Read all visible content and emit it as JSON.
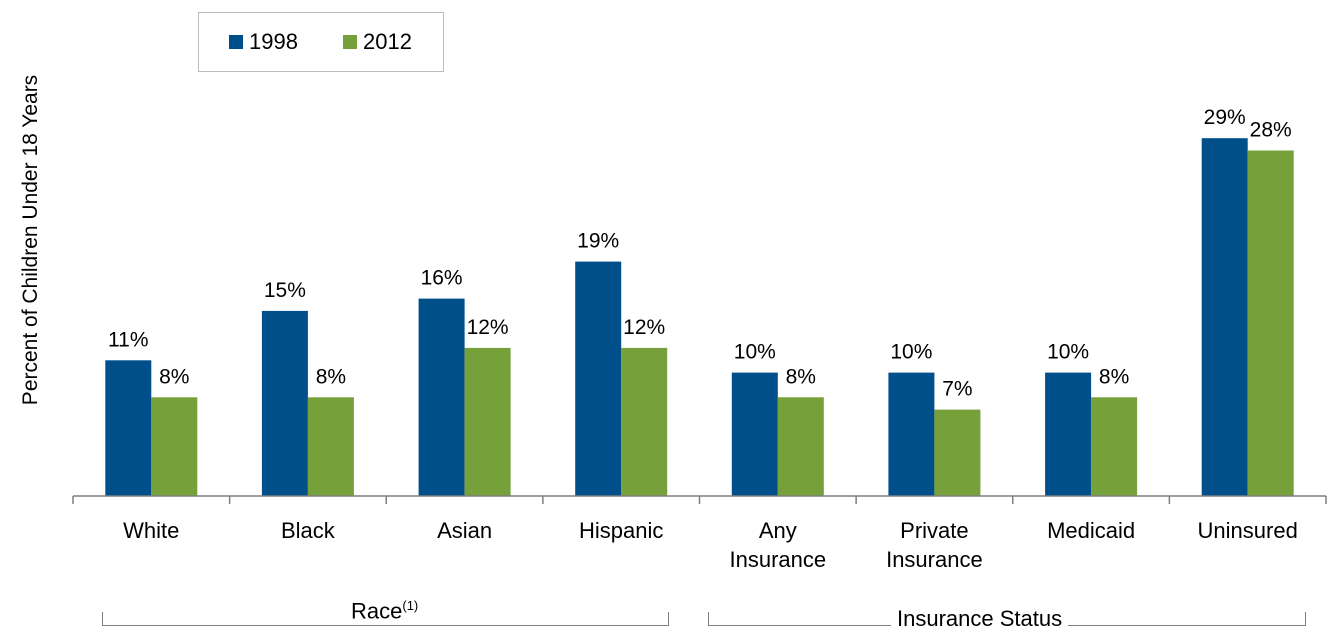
{
  "legend": [
    {
      "name": "1998",
      "color": "#004f8b"
    },
    {
      "name": "2012",
      "color": "#76a03a"
    }
  ],
  "chart_data": {
    "type": "bar",
    "ylabel": "Percent of Children Under 18 Years",
    "categories": [
      "White",
      "Black",
      "Asian",
      "Hispanic",
      "Any Insurance",
      "Private Insurance",
      "Medicaid",
      "Uninsured"
    ],
    "category_lines": [
      [
        "White"
      ],
      [
        "Black"
      ],
      [
        "Asian"
      ],
      [
        "Hispanic"
      ],
      [
        "Any",
        "Insurance"
      ],
      [
        "Private",
        "Insurance"
      ],
      [
        "Medicaid"
      ],
      [
        "Uninsured"
      ]
    ],
    "series": [
      {
        "name": "1998",
        "color": "#004f8b",
        "values": [
          11,
          15,
          16,
          19,
          10,
          10,
          10,
          29
        ],
        "labels": [
          "11%",
          "15%",
          "16%",
          "19%",
          "10%",
          "10%",
          "10%",
          "29%"
        ]
      },
      {
        "name": "2012",
        "color": "#76a03a",
        "values": [
          8,
          8,
          12,
          12,
          8,
          7,
          8,
          28
        ],
        "labels": [
          "8%",
          "8%",
          "12%",
          "12%",
          "8%",
          "7%",
          "8%",
          "28%"
        ]
      }
    ],
    "groups": [
      {
        "label": "Race",
        "superscript": "(1)",
        "from": 0,
        "to": 3
      },
      {
        "label": "Insurance Status",
        "superscript": "",
        "from": 4,
        "to": 7
      }
    ],
    "ylim": [
      0,
      29.5
    ],
    "grid": false,
    "legend_position": "top-left"
  }
}
